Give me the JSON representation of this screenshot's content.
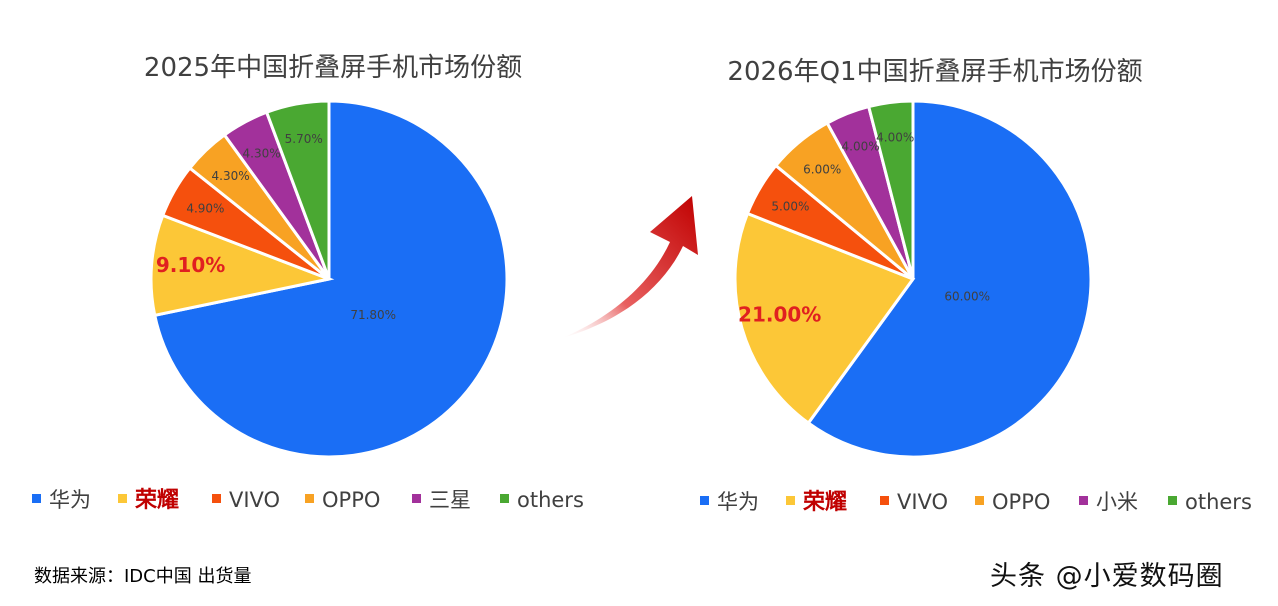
{
  "source_note": "数据来源：IDC中国 出货量",
  "watermark": "头条 @小爱数码圈",
  "colors": {
    "huawei": "#1a6ef5",
    "honor": "#fcc737",
    "vivo": "#f5500d",
    "oppo": "#f8a223",
    "purple": "#a2319b",
    "others": "#4aa832",
    "arrow": "#c00000",
    "highlight_label": "#e02020",
    "highlight_legend": "#c00000"
  },
  "chart_data": [
    {
      "type": "pie",
      "title": "2025年中国折叠屏手机市场份额",
      "series": [
        {
          "name": "华为",
          "value": 71.8,
          "label": "71.80%",
          "color_key": "huawei"
        },
        {
          "name": "荣耀",
          "value": 9.1,
          "label": "9.10%",
          "color_key": "honor",
          "highlight": true
        },
        {
          "name": "VIVO",
          "value": 4.9,
          "label": "4.90%",
          "color_key": "vivo"
        },
        {
          "name": "OPPO",
          "value": 4.3,
          "label": "4.30%",
          "color_key": "oppo"
        },
        {
          "name": "三星",
          "value": 4.3,
          "label": "4.30%",
          "color_key": "purple"
        },
        {
          "name": "others",
          "value": 5.7,
          "label": "5.70%",
          "color_key": "others"
        }
      ],
      "legend_position": "bottom"
    },
    {
      "type": "pie",
      "title": "2026年Q1中国折叠屏手机市场份额",
      "series": [
        {
          "name": "华为",
          "value": 60.0,
          "label": "60.00%",
          "color_key": "huawei"
        },
        {
          "name": "荣耀",
          "value": 21.0,
          "label": "21.00%",
          "color_key": "honor",
          "highlight": true
        },
        {
          "name": "VIVO",
          "value": 5.0,
          "label": "5.00%",
          "color_key": "vivo"
        },
        {
          "name": "OPPO",
          "value": 6.0,
          "label": "6.00%",
          "color_key": "oppo"
        },
        {
          "name": "小米",
          "value": 4.0,
          "label": "4.00%",
          "color_key": "purple"
        },
        {
          "name": "others",
          "value": 4.0,
          "label": "4.00%",
          "color_key": "others"
        }
      ],
      "legend_position": "bottom"
    }
  ]
}
